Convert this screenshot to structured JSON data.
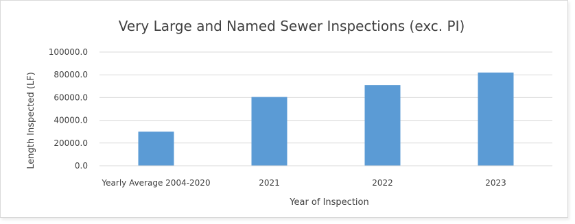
{
  "chart_data": {
    "type": "bar",
    "title": "Very Large and Named Sewer Inspections (exc. PI)",
    "xlabel": "Year of Inspection",
    "ylabel": "Length Inspected (LF)",
    "categories": [
      "Yearly Average 2004-2020",
      "2021",
      "2022",
      "2023"
    ],
    "values": [
      30000,
      60500,
      71000,
      82000
    ],
    "ylim": [
      0,
      100000
    ],
    "yticks": [
      0,
      20000,
      40000,
      60000,
      80000,
      100000
    ],
    "ytick_labels": [
      "0.0",
      "20000.0",
      "40000.0",
      "60000.0",
      "80000.0",
      "100000.0"
    ],
    "grid": true,
    "legend": "none",
    "colors": {
      "bar": "#5b9bd5",
      "grid": "#d9d9d9",
      "text": "#404040"
    }
  }
}
